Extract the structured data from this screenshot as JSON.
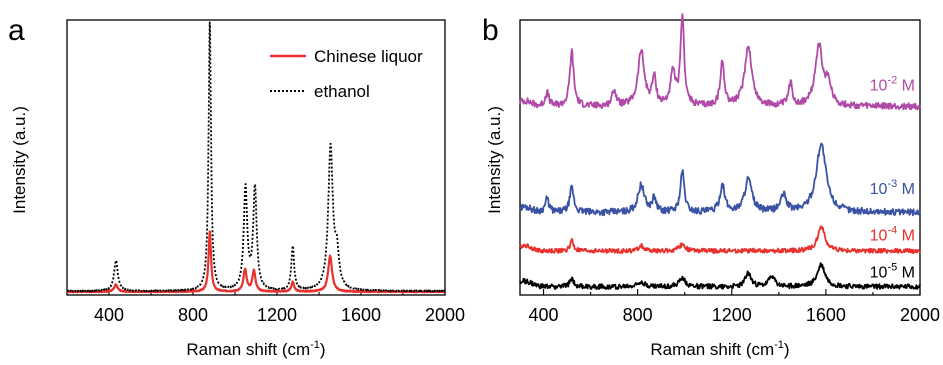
{
  "chart_data": [
    {
      "panel": "a",
      "type": "line",
      "xlabel": "Raman shift (cm",
      "xlabel_sup": "-1",
      "xlabel_end": ")",
      "ylabel": "Intensity (a.u.)",
      "xlim": [
        200,
        2000
      ],
      "ylim": [
        0,
        1.0
      ],
      "xticks": [
        400,
        800,
        1200,
        1600,
        2000
      ],
      "grid": false,
      "legend_position": "top-right",
      "series": [
        {
          "name": "Chinese liquor",
          "color": "#e8312c",
          "style": "solid",
          "baseline": 0.012,
          "peaks": [
            [
              433,
              0.025,
              10
            ],
            [
              880,
              0.22,
              7
            ],
            [
              1048,
              0.08,
              9
            ],
            [
              1090,
              0.075,
              9
            ],
            [
              1275,
              0.035,
              8
            ],
            [
              1453,
              0.13,
              11
            ]
          ]
        },
        {
          "name": "ethanol",
          "color": "#000000",
          "style": "dotted",
          "baseline": 0.014,
          "peaks": [
            [
              433,
              0.11,
              11
            ],
            [
              880,
              0.98,
              7
            ],
            [
              1050,
              0.37,
              10
            ],
            [
              1095,
              0.37,
              10
            ],
            [
              1275,
              0.16,
              8
            ],
            [
              1455,
              0.52,
              13
            ],
            [
              1485,
              0.12,
              12
            ]
          ]
        }
      ]
    },
    {
      "panel": "b",
      "type": "line",
      "xlabel": "Raman shift (cm",
      "xlabel_sup": "-1",
      "xlabel_end": ")",
      "ylabel": "Intensity (a.u.)",
      "xlim": [
        300,
        2000
      ],
      "ylim": [
        0,
        1.0
      ],
      "xticks": [
        400,
        800,
        1200,
        1600,
        2000
      ],
      "grid": false,
      "series": [
        {
          "name_base": "10",
          "name_exp": "-2",
          "name_unit": " M",
          "color": "#b04aa8",
          "offset": 0.685,
          "noise": 0.012,
          "peaks": [
            [
              415,
              0.05,
              10
            ],
            [
              520,
              0.2,
              10
            ],
            [
              700,
              0.06,
              10
            ],
            [
              815,
              0.2,
              16
            ],
            [
              870,
              0.1,
              10
            ],
            [
              950,
              0.12,
              12
            ],
            [
              990,
              0.33,
              9
            ],
            [
              1160,
              0.16,
              10
            ],
            [
              1270,
              0.22,
              18
            ],
            [
              1450,
              0.08,
              10
            ],
            [
              1570,
              0.22,
              18
            ],
            [
              1610,
              0.08,
              15
            ]
          ]
        },
        {
          "name_base": "10",
          "name_exp": "-3",
          "name_unit": " M",
          "color": "#3952a3",
          "offset": 0.3,
          "noise": 0.012,
          "peaks": [
            [
              415,
              0.05,
              10
            ],
            [
              520,
              0.09,
              10
            ],
            [
              815,
              0.1,
              16
            ],
            [
              870,
              0.05,
              10
            ],
            [
              990,
              0.15,
              10
            ],
            [
              1160,
              0.1,
              12
            ],
            [
              1270,
              0.12,
              18
            ],
            [
              1420,
              0.06,
              15
            ],
            [
              1580,
              0.25,
              25
            ]
          ]
        },
        {
          "name_base": "10",
          "name_exp": "-4",
          "name_unit": " M",
          "color": "#e8312c",
          "offset": 0.16,
          "noise": 0.008,
          "peaks": [
            [
              520,
              0.04,
              8
            ],
            [
              815,
              0.02,
              12
            ],
            [
              990,
              0.025,
              14
            ],
            [
              1580,
              0.09,
              18
            ]
          ]
        },
        {
          "name_base": "10",
          "name_exp": "-5",
          "name_unit": " M",
          "color": "#000000",
          "offset": 0.03,
          "noise": 0.009,
          "peaks": [
            [
              520,
              0.03,
              10
            ],
            [
              815,
              0.02,
              15
            ],
            [
              990,
              0.035,
              14
            ],
            [
              1270,
              0.05,
              14
            ],
            [
              1370,
              0.04,
              14
            ],
            [
              1580,
              0.08,
              20
            ]
          ]
        }
      ]
    }
  ]
}
